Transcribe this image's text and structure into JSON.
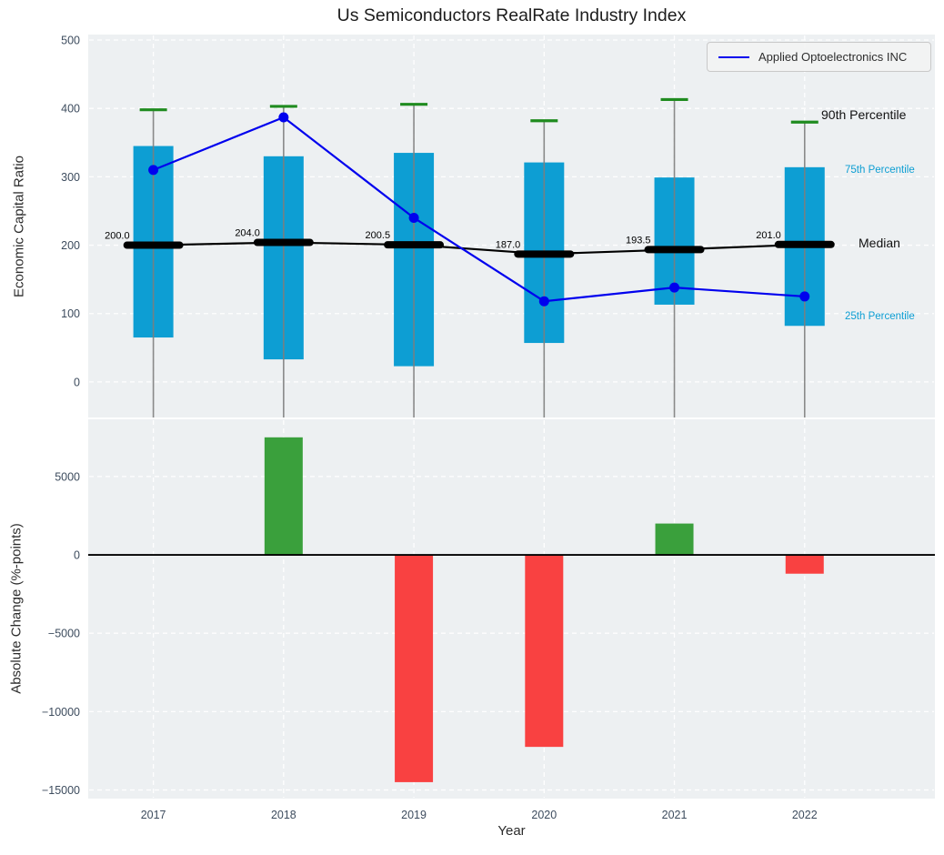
{
  "title": "Us Semiconductors RealRate Industry Index",
  "legend": {
    "label": "Applied Optoelectronics INC"
  },
  "annotations": {
    "p90": "90th Percentile",
    "p75": "75th Percentile",
    "median": "Median",
    "p25": "25th Percentile"
  },
  "colors": {
    "axes_bg": "#edf0f2",
    "grid": "#ffffff",
    "tick_label": "#3d4c5e",
    "box": "#0d9ed3",
    "whisker": "#7e7e7e",
    "cap": "#1f8b1f",
    "median": "#000000",
    "company_line": "#0000ee",
    "bar_positive": "#3aa03c",
    "bar_negative": "#f94141",
    "zero_line": "#000000",
    "annotation_teal": "#0d9ed3"
  },
  "chart_data": [
    {
      "type": "box+line",
      "title": "Us Semiconductors RealRate Industry Index",
      "ylabel": "Economic Capital Ratio",
      "categories": [
        2017,
        2018,
        2019,
        2020,
        2021,
        2022
      ],
      "yticks": [
        0,
        100,
        200,
        300,
        400,
        500
      ],
      "ytick_labels": [
        "0",
        "100",
        "200",
        "300",
        "400",
        "500"
      ],
      "ylim": [
        -52,
        508
      ],
      "grid": true,
      "legend_position": "upper right",
      "series": [
        {
          "name": "25th Percentile",
          "values": [
            65,
            33,
            23,
            57,
            113,
            82
          ]
        },
        {
          "name": "75th Percentile",
          "values": [
            345,
            330,
            335,
            321,
            299,
            314
          ]
        },
        {
          "name": "90th Percentile",
          "values": [
            398,
            403,
            406,
            382,
            413,
            380
          ]
        },
        {
          "name": "Median",
          "values": [
            200.0,
            204.0,
            200.5,
            187.0,
            193.5,
            201.0
          ]
        },
        {
          "name": "Applied Optoelectronics INC",
          "values": [
            310,
            387,
            240,
            118,
            138,
            125
          ]
        }
      ],
      "median_labels": [
        "200.0",
        "204.0",
        "200.5",
        "187.0",
        "193.5",
        "201.0"
      ]
    },
    {
      "type": "bar",
      "ylabel": "Absolute Change (%-points)",
      "xlabel": "Year",
      "categories": [
        2017,
        2018,
        2019,
        2020,
        2021,
        2022
      ],
      "x_tick_labels": [
        "2017",
        "2018",
        "2019",
        "2020",
        "2021",
        "2022"
      ],
      "values": [
        0,
        7500,
        -14500,
        -12250,
        2000,
        -1200
      ],
      "yticks": [
        5000,
        0,
        -5000,
        -10000,
        -15000
      ],
      "ytick_labels": [
        "5000",
        "0",
        "−5000",
        "−10000",
        "−15000"
      ],
      "ylim": [
        -15550,
        8650
      ],
      "grid": true
    }
  ]
}
